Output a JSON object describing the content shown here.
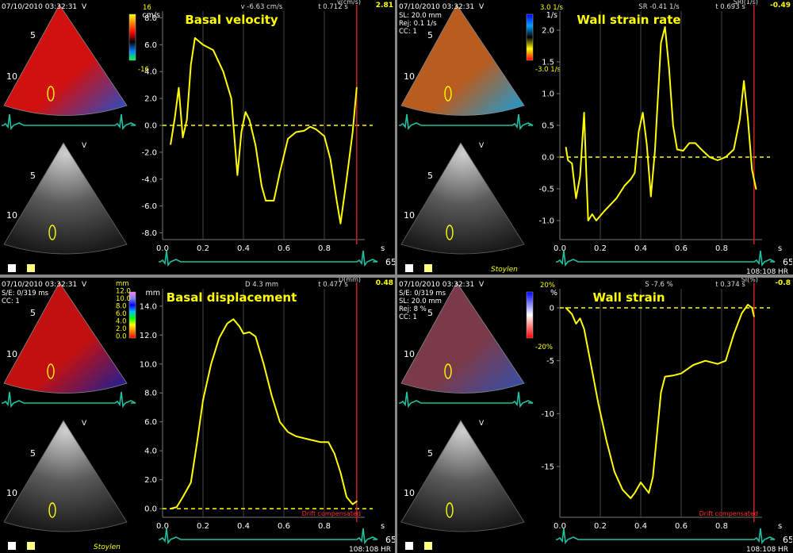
{
  "panels": [
    {
      "id": "basal-velocity",
      "header": {
        "timestamp": "07/10/2010 03:32:31",
        "mode": "V",
        "lines": []
      },
      "colorbar": {
        "labels": [
          "16",
          "-16"
        ],
        "colors": [
          "#ffff00",
          "#ff8000",
          "#ff0000",
          "#000000",
          "#0080ff",
          "#00ff40"
        ]
      },
      "readout": {
        "left": "v -6.63 cm/s",
        "right": "t 0.712 s",
        "channel": "v(cm/s)",
        "value": "2.81"
      },
      "depth_labels": [
        "5",
        "10",
        "5",
        "10"
      ],
      "footer": {
        "signature": "",
        "hr_left": "",
        "hr_right": "",
        "drift": ""
      },
      "chart_data": {
        "type": "line",
        "title": "Basal velocity",
        "xlabel": "s",
        "ylabel": "cm/s",
        "xlim": [
          0.0,
          1.0
        ],
        "ylim": [
          -8.5,
          8.5
        ],
        "xticks": [
          "0.0",
          "0.2",
          "0.4",
          "0.6",
          "0.8"
        ],
        "xtick_values": [
          0.0,
          0.2,
          0.4,
          0.6,
          0.8
        ],
        "yticks": [
          "8.0",
          "6.0",
          "4.0",
          "2.0",
          "0.0",
          "-2.0",
          "-4.0",
          "-6.0",
          "-8.0"
        ],
        "ytick_values": [
          8,
          6,
          4,
          2,
          0,
          -2,
          -4,
          -6,
          -8
        ],
        "zero_line": 0,
        "cursor_x": 0.96,
        "series": [
          {
            "values": [
              [
                0.04,
                -1.4
              ],
              [
                0.06,
                0.5
              ],
              [
                0.08,
                2.8
              ],
              [
                0.1,
                -0.9
              ],
              [
                0.12,
                0.4
              ],
              [
                0.14,
                4.5
              ],
              [
                0.16,
                6.5
              ],
              [
                0.2,
                6.0
              ],
              [
                0.25,
                5.6
              ],
              [
                0.3,
                4.0
              ],
              [
                0.34,
                2.0
              ],
              [
                0.37,
                -3.7
              ],
              [
                0.39,
                -0.5
              ],
              [
                0.41,
                1.0
              ],
              [
                0.43,
                0.4
              ],
              [
                0.46,
                -1.5
              ],
              [
                0.49,
                -4.5
              ],
              [
                0.51,
                -5.6
              ],
              [
                0.55,
                -5.6
              ],
              [
                0.58,
                -3.5
              ],
              [
                0.62,
                -1.0
              ],
              [
                0.66,
                -0.5
              ],
              [
                0.7,
                -0.4
              ],
              [
                0.73,
                -0.1
              ],
              [
                0.76,
                -0.3
              ],
              [
                0.8,
                -0.8
              ],
              [
                0.83,
                -2.5
              ],
              [
                0.86,
                -5.5
              ],
              [
                0.88,
                -7.3
              ],
              [
                0.91,
                -4.0
              ],
              [
                0.94,
                -0.5
              ],
              [
                0.96,
                2.8
              ]
            ]
          }
        ]
      }
    },
    {
      "id": "wall-strain-rate",
      "header": {
        "timestamp": "07/10/2010 03:32:31",
        "mode": "V",
        "lines": [
          "SL: 20.0 mm",
          "Rej: 0.1 1/s",
          "CC: 1"
        ]
      },
      "colorbar": {
        "labels": [
          "3.0 1/s",
          "-3.0 1/s"
        ],
        "colors": [
          "#0000ff",
          "#00a0ff",
          "#000000",
          "#ffff00",
          "#ff0000"
        ]
      },
      "readout": {
        "left": "SR -0.41 1/s",
        "right": "t 0.693 s",
        "channel": "SRI(1/s)",
        "value": "-0.49"
      },
      "depth_labels": [
        "5",
        "10",
        "5",
        "10"
      ],
      "footer": {
        "signature": "Stoylen",
        "hr_left": "108:108",
        "hr_right": "HR",
        "drift": ""
      },
      "chart_data": {
        "type": "line",
        "title": "Wall strain rate",
        "xlabel": "s",
        "ylabel": "1/s",
        "xlim": [
          0.0,
          1.0
        ],
        "ylim": [
          -1.3,
          2.3
        ],
        "xticks": [
          "0.0",
          "0.2",
          "0.4",
          "0.6",
          "0.8"
        ],
        "xtick_values": [
          0.0,
          0.2,
          0.4,
          0.6,
          0.8
        ],
        "yticks": [
          "2.0",
          "1.5",
          "1.0",
          "0.5",
          "0.0",
          "-0.5",
          "-1.0"
        ],
        "ytick_values": [
          2.0,
          1.5,
          1.0,
          0.5,
          0.0,
          -0.5,
          -1.0
        ],
        "zero_line": 0,
        "cursor_x": 0.96,
        "series": [
          {
            "values": [
              [
                0.03,
                0.15
              ],
              [
                0.04,
                -0.05
              ],
              [
                0.06,
                -0.1
              ],
              [
                0.08,
                -0.65
              ],
              [
                0.1,
                -0.3
              ],
              [
                0.12,
                0.7
              ],
              [
                0.13,
                -0.2
              ],
              [
                0.14,
                -1.0
              ],
              [
                0.16,
                -0.9
              ],
              [
                0.18,
                -1.0
              ],
              [
                0.22,
                -0.85
              ],
              [
                0.28,
                -0.65
              ],
              [
                0.32,
                -0.45
              ],
              [
                0.35,
                -0.35
              ],
              [
                0.37,
                -0.25
              ],
              [
                0.39,
                0.4
              ],
              [
                0.41,
                0.7
              ],
              [
                0.43,
                0.2
              ],
              [
                0.45,
                -0.62
              ],
              [
                0.47,
                0.1
              ],
              [
                0.5,
                1.8
              ],
              [
                0.52,
                2.05
              ],
              [
                0.54,
                1.4
              ],
              [
                0.56,
                0.5
              ],
              [
                0.58,
                0.12
              ],
              [
                0.61,
                0.1
              ],
              [
                0.64,
                0.22
              ],
              [
                0.67,
                0.22
              ],
              [
                0.7,
                0.12
              ],
              [
                0.74,
                0.0
              ],
              [
                0.78,
                -0.05
              ],
              [
                0.82,
                0.0
              ],
              [
                0.86,
                0.12
              ],
              [
                0.89,
                0.6
              ],
              [
                0.91,
                1.2
              ],
              [
                0.93,
                0.6
              ],
              [
                0.95,
                -0.2
              ],
              [
                0.97,
                -0.5
              ]
            ]
          }
        ]
      }
    },
    {
      "id": "basal-displacement",
      "header": {
        "timestamp": "07/10/2010 03:32:31",
        "mode": "V",
        "lines": [
          "S/E:  0/319 ms",
          "CC: 1"
        ]
      },
      "colorbar": {
        "labels": [
          "mm",
          "12.0",
          "10.0",
          "8.0",
          "6.0",
          "4.0",
          "2.0",
          "0.0"
        ],
        "colors": [
          "#ff80ff",
          "#8080ff",
          "#0000ff",
          "#00c0ff",
          "#00ff00",
          "#ffff00",
          "#ff8000",
          "#ff0000"
        ]
      },
      "readout": {
        "left": "D 4.3 mm",
        "right": "t 0.477 s",
        "channel": "D(mm)",
        "value": "0.48"
      },
      "depth_labels": [
        "5",
        "10",
        "5",
        "10"
      ],
      "footer": {
        "signature": "Stoylen",
        "hr_left": "108:108",
        "hr_right": "HR",
        "drift": "Drift compensated"
      },
      "chart_data": {
        "type": "line",
        "title": "Basal displacement",
        "xlabel": "s",
        "ylabel": "mm",
        "xlim": [
          0.0,
          1.0
        ],
        "ylim": [
          -0.6,
          15.2
        ],
        "xticks": [
          "0.0",
          "0.2",
          "0.4",
          "0.6",
          "0.8"
        ],
        "xtick_values": [
          0.0,
          0.2,
          0.4,
          0.6,
          0.8
        ],
        "yticks": [
          "14.0",
          "12.0",
          "10.0",
          "8.0",
          "6.0",
          "4.0",
          "2.0",
          "0.0"
        ],
        "ytick_values": [
          14,
          12,
          10,
          8,
          6,
          4,
          2,
          0
        ],
        "zero_line": 0,
        "cursor_x": 0.96,
        "series": [
          {
            "values": [
              [
                0.04,
                0.0
              ],
              [
                0.07,
                0.1
              ],
              [
                0.1,
                0.8
              ],
              [
                0.14,
                1.8
              ],
              [
                0.17,
                4.5
              ],
              [
                0.2,
                7.5
              ],
              [
                0.24,
                10.0
              ],
              [
                0.28,
                11.8
              ],
              [
                0.32,
                12.8
              ],
              [
                0.35,
                13.1
              ],
              [
                0.38,
                12.6
              ],
              [
                0.4,
                12.1
              ],
              [
                0.43,
                12.2
              ],
              [
                0.46,
                11.9
              ],
              [
                0.5,
                10.0
              ],
              [
                0.54,
                7.8
              ],
              [
                0.58,
                6.0
              ],
              [
                0.62,
                5.3
              ],
              [
                0.66,
                5.0
              ],
              [
                0.72,
                4.8
              ],
              [
                0.78,
                4.6
              ],
              [
                0.82,
                4.6
              ],
              [
                0.85,
                3.8
              ],
              [
                0.88,
                2.5
              ],
              [
                0.91,
                0.8
              ],
              [
                0.94,
                0.3
              ],
              [
                0.96,
                0.5
              ]
            ]
          }
        ]
      }
    },
    {
      "id": "wall-strain",
      "header": {
        "timestamp": "07/10/2010 03:32:31",
        "mode": "V",
        "lines": [
          "S/E:  0/319 ms",
          "SL: 20.0 mm",
          "Rej: 8 %",
          "CC: 1"
        ]
      },
      "colorbar": {
        "labels": [
          "20%",
          "-20%"
        ],
        "colors": [
          "#0000ff",
          "#8080ff",
          "#ffffff",
          "#ff8080",
          "#ff0000"
        ]
      },
      "readout": {
        "left": "S -7.6 %",
        "right": "t 0.374 s",
        "channel": "SI(%)",
        "value": "-0.8"
      },
      "depth_labels": [
        "5",
        "10",
        "5",
        "10"
      ],
      "footer": {
        "signature": "",
        "hr_left": "108:108",
        "hr_right": "HR",
        "drift": "Drift compensated"
      },
      "chart_data": {
        "type": "line",
        "title": "Wall strain",
        "xlabel": "s",
        "ylabel": "%",
        "xlim": [
          0.0,
          1.0
        ],
        "ylim": [
          -19.8,
          1.8
        ],
        "xticks": [
          "0.0",
          "0.2",
          "0.4",
          "0.6",
          "0.8"
        ],
        "xtick_values": [
          0.0,
          0.2,
          0.4,
          0.6,
          0.8
        ],
        "yticks": [
          "0",
          "-5",
          "-10",
          "-15"
        ],
        "ytick_values": [
          0,
          -5,
          -10,
          -15
        ],
        "zero_line": 0,
        "cursor_x": 0.96,
        "series": [
          {
            "values": [
              [
                0.03,
                0.0
              ],
              [
                0.06,
                -0.6
              ],
              [
                0.08,
                -1.5
              ],
              [
                0.1,
                -1.0
              ],
              [
                0.12,
                -2.0
              ],
              [
                0.15,
                -5.0
              ],
              [
                0.19,
                -9.0
              ],
              [
                0.23,
                -12.5
              ],
              [
                0.27,
                -15.5
              ],
              [
                0.31,
                -17.2
              ],
              [
                0.35,
                -18.0
              ],
              [
                0.37,
                -17.5
              ],
              [
                0.4,
                -16.5
              ],
              [
                0.42,
                -17.0
              ],
              [
                0.44,
                -17.5
              ],
              [
                0.46,
                -16.0
              ],
              [
                0.48,
                -12.0
              ],
              [
                0.5,
                -8.0
              ],
              [
                0.52,
                -6.5
              ],
              [
                0.56,
                -6.4
              ],
              [
                0.6,
                -6.2
              ],
              [
                0.66,
                -5.4
              ],
              [
                0.72,
                -5.0
              ],
              [
                0.78,
                -5.3
              ],
              [
                0.82,
                -5.0
              ],
              [
                0.86,
                -2.5
              ],
              [
                0.9,
                -0.5
              ],
              [
                0.93,
                0.3
              ],
              [
                0.95,
                0.0
              ],
              [
                0.96,
                -0.8
              ]
            ]
          }
        ]
      }
    }
  ],
  "ecg_labels": [
    "65"
  ],
  "colors": {
    "trace": "#ffff00",
    "grid": "#555555",
    "cursor": "#cc2222",
    "ecg": "#20c0a0",
    "title": "#ffff00"
  }
}
